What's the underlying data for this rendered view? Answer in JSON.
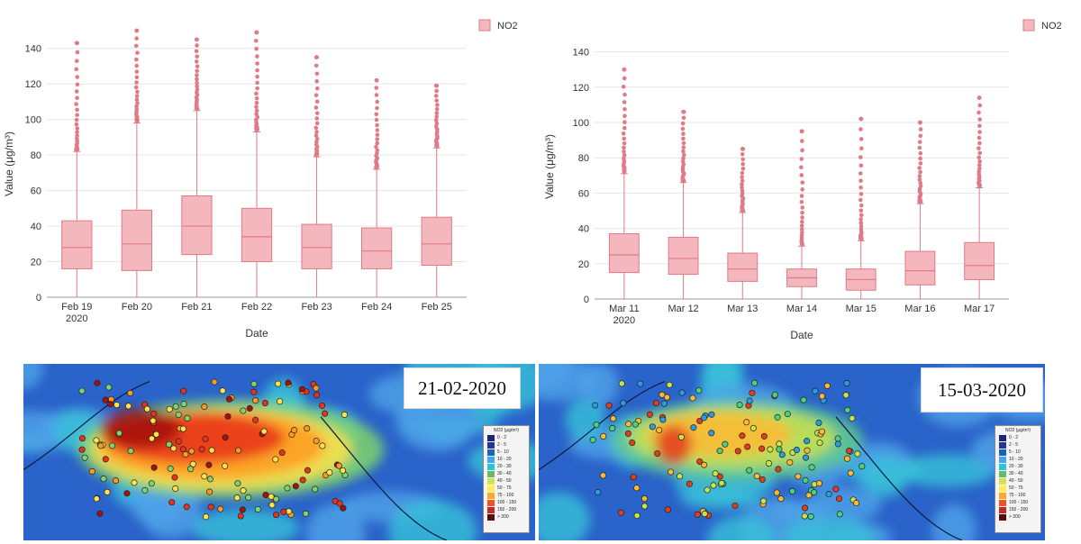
{
  "chart_data": [
    {
      "type": "box",
      "title": "",
      "xlabel": "Date",
      "ylabel": "Value (μg/m³)",
      "ylim": [
        0,
        150
      ],
      "yticks": [
        0,
        20,
        40,
        60,
        80,
        100,
        120,
        140
      ],
      "legend": {
        "label": "NO2",
        "position": "top-right"
      },
      "series_color": "#f3b7bd",
      "series_stroke": "#e07a86",
      "categories": [
        "Feb 19",
        "Feb 20",
        "Feb 21",
        "Feb 22",
        "Feb 23",
        "Feb 24",
        "Feb 25"
      ],
      "year_label": "2020",
      "boxes": [
        {
          "min": 0,
          "q1": 16,
          "median": 28,
          "q3": 43,
          "upper_whisker": 82,
          "outliers_max": 143
        },
        {
          "min": 0,
          "q1": 15,
          "median": 30,
          "q3": 49,
          "upper_whisker": 98,
          "outliers_max": 150
        },
        {
          "min": 0,
          "q1": 24,
          "median": 40,
          "q3": 57,
          "upper_whisker": 105,
          "outliers_max": 145
        },
        {
          "min": 0,
          "q1": 20,
          "median": 34,
          "q3": 50,
          "upper_whisker": 93,
          "outliers_max": 149
        },
        {
          "min": 0,
          "q1": 16,
          "median": 28,
          "q3": 41,
          "upper_whisker": 79,
          "outliers_max": 135
        },
        {
          "min": 0,
          "q1": 16,
          "median": 26,
          "q3": 39,
          "upper_whisker": 72,
          "outliers_max": 122
        },
        {
          "min": 0,
          "q1": 18,
          "median": 30,
          "q3": 45,
          "upper_whisker": 84,
          "outliers_max": 119
        }
      ]
    },
    {
      "type": "box",
      "title": "",
      "xlabel": "Date",
      "ylabel": "Value (μg/m³)",
      "ylim": [
        0,
        150
      ],
      "yticks": [
        0,
        20,
        40,
        60,
        80,
        100,
        120,
        140
      ],
      "legend": {
        "label": "NO2",
        "position": "top-right"
      },
      "series_color": "#f3b7bd",
      "series_stroke": "#e07a86",
      "categories": [
        "Mar 11",
        "Mar 12",
        "Mar 13",
        "Mar 14",
        "Mar 15",
        "Mar 16",
        "Mar 17"
      ],
      "year_label": "2020",
      "boxes": [
        {
          "min": 0,
          "q1": 15,
          "median": 25,
          "q3": 37,
          "upper_whisker": 71,
          "outliers_max": 130
        },
        {
          "min": 0,
          "q1": 14,
          "median": 23,
          "q3": 35,
          "upper_whisker": 66,
          "outliers_max": 106
        },
        {
          "min": 0,
          "q1": 10,
          "median": 17,
          "q3": 26,
          "upper_whisker": 49,
          "outliers_max": 85
        },
        {
          "min": 0,
          "q1": 7,
          "median": 12,
          "q3": 17,
          "upper_whisker": 30,
          "outliers_max": 95
        },
        {
          "min": 0,
          "q1": 5,
          "median": 11,
          "q3": 17,
          "upper_whisker": 33,
          "outliers_max": 102
        },
        {
          "min": 0,
          "q1": 8,
          "median": 16,
          "q3": 27,
          "upper_whisker": 54,
          "outliers_max": 100
        },
        {
          "min": 0,
          "q1": 11,
          "median": 19,
          "q3": 32,
          "upper_whisker": 63,
          "outliers_max": 114
        }
      ]
    }
  ],
  "maps": [
    {
      "date": "21-02-2020"
    },
    {
      "date": "15-03-2020"
    }
  ],
  "map_scale": {
    "title": "NO2 (μg/m³)",
    "classes": [
      {
        "label": "0 - 2",
        "color": "#1a237e"
      },
      {
        "label": "2 - 5",
        "color": "#283593"
      },
      {
        "label": "5 - 10",
        "color": "#1565c0"
      },
      {
        "label": "10 - 20",
        "color": "#42a5f5"
      },
      {
        "label": "20 - 30",
        "color": "#26c6da"
      },
      {
        "label": "30 - 40",
        "color": "#66bb6a"
      },
      {
        "label": "40 - 50",
        "color": "#d4e157"
      },
      {
        "label": "50 - 75",
        "color": "#ffee58"
      },
      {
        "label": "75 - 100",
        "color": "#ffa726"
      },
      {
        "label": "100 - 150",
        "color": "#f4511e"
      },
      {
        "label": "150 - 200",
        "color": "#c62828"
      },
      {
        "label": "> 200",
        "color": "#5d0a0a"
      }
    ]
  }
}
